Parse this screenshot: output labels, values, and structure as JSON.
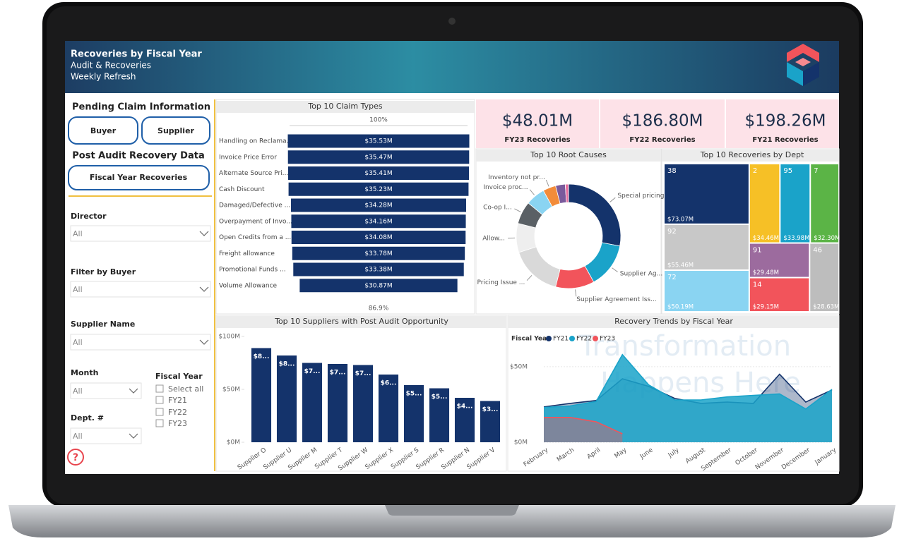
{
  "header": {
    "title": "Recoveries by Fiscal Year",
    "subtitle": "Audit & Recoveries",
    "note": "Weekly Refresh"
  },
  "watermark": [
    "Transformation",
    "Happens Here"
  ],
  "sidebar": {
    "pending_title": "Pending Claim Information",
    "buttons": [
      "Buyer",
      "Supplier"
    ],
    "post_title": "Post Audit Recovery Data",
    "post_button": "Fiscal Year Recoveries",
    "filters": [
      {
        "label": "Director",
        "value": "All"
      },
      {
        "label": "Filter by Buyer",
        "value": "All"
      },
      {
        "label": "Supplier Name",
        "value": "All"
      },
      {
        "label": "Month",
        "value": "All"
      },
      {
        "label": "Dept. #",
        "value": "All"
      }
    ],
    "fiscal_year": {
      "label": "Fiscal Year",
      "options": [
        "Select all",
        "FY21",
        "FY22",
        "FY23"
      ]
    },
    "help": "?"
  },
  "kpis": [
    {
      "value": "$48.01M",
      "label": "FY23 Recoveries"
    },
    {
      "value": "$186.80M",
      "label": "FY22 Recoveries"
    },
    {
      "value": "$198.26M",
      "label": "FY21 Recoveries"
    }
  ],
  "chart_data": [
    {
      "type": "funnel",
      "title": "Top 10 Claim Types",
      "categories": [
        "Handling on Reclama...",
        "Invoice Price Error",
        "Alternate Source Pri...",
        "Cash Discount",
        "Damaged/Defective ...",
        "Overpayment of Invo...",
        "Open Credits from a ...",
        "Freight allowance",
        "Promotional Funds ...",
        "Volume Allowance"
      ],
      "values": [
        35.53,
        35.47,
        35.41,
        35.23,
        34.28,
        34.16,
        34.08,
        33.78,
        33.38,
        30.87
      ],
      "value_labels": [
        "$35.53M",
        "$35.47M",
        "$35.41M",
        "$35.23M",
        "$34.28M",
        "$34.16M",
        "$34.08M",
        "$33.78M",
        "$33.38M",
        "$30.87M"
      ],
      "color": "#14336b",
      "top_label": "100%",
      "bottom_label": "86.9%"
    },
    {
      "type": "donut",
      "title": "Top 10 Root Causes",
      "categories": [
        "Special pricing or ...",
        "Supplier Ag...",
        "Supplier Agreement Iss...",
        "Pricing Issue ...",
        "Allow...",
        "Co-op I...",
        "Invoice proc...",
        "Inventory not pr...",
        null,
        null
      ],
      "values": [
        28,
        14,
        12,
        16,
        9,
        7,
        6,
        4,
        3,
        1
      ],
      "colors": [
        "#14336b",
        "#1aa3c9",
        "#f2545b",
        "#d9d9d9",
        "#eeeeee",
        "#5a6065",
        "#8ad4f2",
        "#f28c3a",
        "#7a5a9c",
        "#e86fa0"
      ]
    },
    {
      "type": "treemap",
      "title": "Top 10 Recoveries by Dept",
      "categories": [
        "38",
        "2",
        "95",
        "7",
        "92",
        "91",
        "46",
        "72",
        "14"
      ],
      "values": [
        73.07,
        34.46,
        33.98,
        32.3,
        55.46,
        29.48,
        28.63,
        50.19,
        29.15
      ],
      "value_labels": [
        "$73.07M",
        "$34.46M",
        "$33.98M",
        "$32.30M",
        "$55.46M",
        "$29.48M",
        "$28.63M",
        "$50.19M",
        "$29.15M"
      ],
      "colors": [
        "#14336b",
        "#f6c026",
        "#1aa3c9",
        "#5bb446",
        "#c8c8c8",
        "#9c6b9e",
        "#bdbdbd",
        "#8ad4f2",
        "#f2545b"
      ]
    },
    {
      "type": "bar",
      "title": "Top 10 Suppliers with Post Audit Opportunity",
      "categories": [
        "Supplier O",
        "Supplier U",
        "Supplier M",
        "Supplier T",
        "Supplier W",
        "Supplier X",
        "Supplier S",
        "Supplier R",
        "Supplier N",
        "Supplier V"
      ],
      "values": [
        89,
        82,
        75,
        74,
        73,
        64,
        54,
        51,
        42,
        39
      ],
      "value_labels": [
        "$8...",
        "$8...",
        "$7...",
        "$7...",
        "$7...",
        "$6...",
        "$5...",
        "$5...",
        "$4...",
        "$3..."
      ],
      "color": "#14336b",
      "ylim": [
        0,
        100
      ],
      "yticks": [
        {
          "value": 0,
          "label": "$0M"
        },
        {
          "value": 50,
          "label": "$50M"
        },
        {
          "value": 100,
          "label": "$100M"
        }
      ],
      "grid": false
    },
    {
      "type": "area",
      "title": "Recovery Trends by Fiscal Year",
      "legend_title": "Fiscal Year",
      "categories": [
        "February",
        "March",
        "April",
        "May",
        "June",
        "July",
        "August",
        "September",
        "October",
        "November",
        "December",
        "January"
      ],
      "series": [
        {
          "name": "FY21",
          "color": "#14336b",
          "values": [
            23.4,
            25.7,
            27.6,
            42,
            37,
            29,
            25.7,
            26.6,
            25.7,
            45,
            26.6,
            34.6
          ]
        },
        {
          "name": "FY22",
          "color": "#1aa3c9",
          "values": [
            23,
            24,
            27,
            58,
            38,
            28,
            28,
            30,
            31,
            32,
            22,
            35
          ]
        },
        {
          "name": "FY23",
          "color": "#f2545b",
          "values": [
            16.4,
            16.4,
            13.5,
            5.6,
            null,
            null,
            null,
            null,
            null,
            null,
            null,
            null
          ]
        }
      ],
      "ylim": [
        0,
        70
      ],
      "yticks": [
        {
          "value": 0,
          "label": "$0M"
        },
        {
          "value": 50,
          "label": "$50M"
        }
      ],
      "grid": true
    }
  ]
}
